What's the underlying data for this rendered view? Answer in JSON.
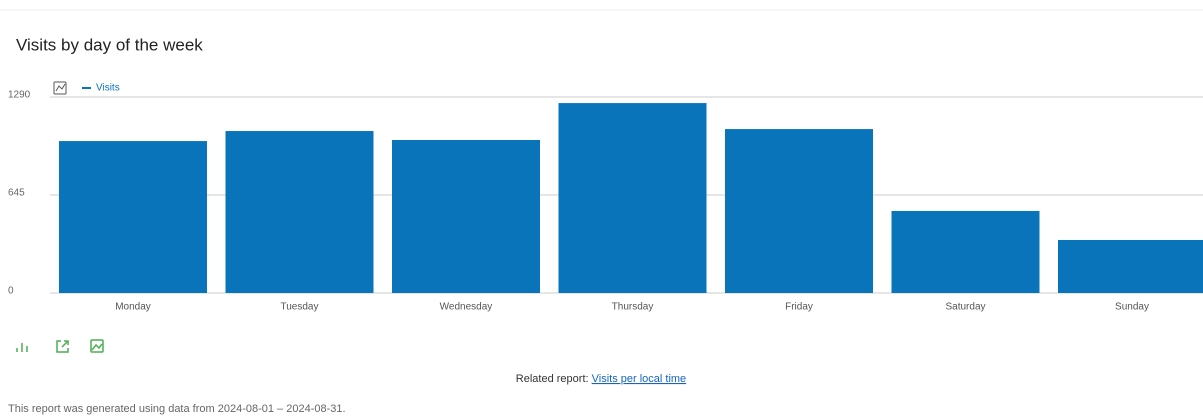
{
  "chart_data": {
    "type": "bar",
    "title": "Visits by day of the week",
    "categories": [
      "Monday",
      "Tuesday",
      "Wednesday",
      "Thursday",
      "Friday",
      "Saturday",
      "Sunday"
    ],
    "series": [
      {
        "name": "Visits",
        "color": "#0a74bb",
        "values": [
          1000,
          1066,
          1007,
          1250,
          1079,
          540,
          349
        ]
      }
    ],
    "ylim": [
      0,
      1290
    ],
    "yticks": [
      0,
      645,
      1290
    ],
    "grid": true
  },
  "related_report": {
    "label": "Related report:",
    "link": "Visits per local time"
  },
  "footer": "This report was generated using data from 2024-08-01 – 2024-08-31."
}
